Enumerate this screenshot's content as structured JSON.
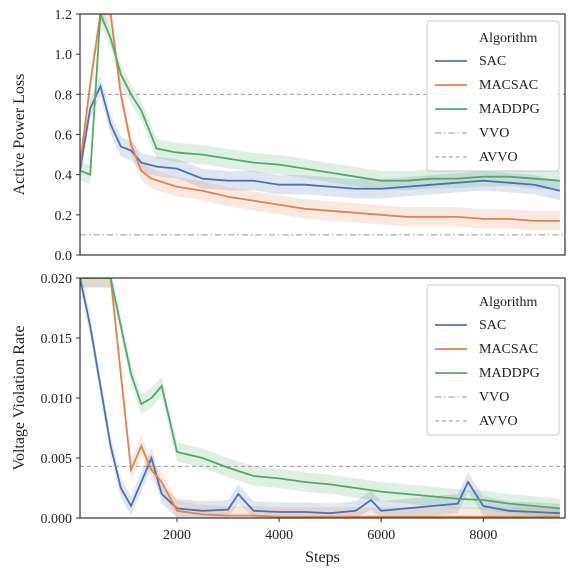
{
  "chart_data": [
    {
      "type": "line",
      "ylabel": "Active Power Loss",
      "xlabel": "",
      "xlim": [
        100,
        9600
      ],
      "ylim": [
        0,
        1.2
      ],
      "yticks": [
        "0.0",
        "0.2",
        "0.4",
        "0.6",
        "0.8",
        "1.0",
        "1.2"
      ],
      "ytick_values": [
        0,
        0.2,
        0.4,
        0.6,
        0.8,
        1.0,
        1.2
      ],
      "xticks": [],
      "xtick_values": [],
      "grid": false,
      "legend": {
        "title": "Algorithm",
        "placement": "top-right"
      },
      "series": [
        {
          "name": "SAC",
          "color": "#4c72b0",
          "style": "solid",
          "x": [
            100,
            300,
            500,
            700,
            900,
            1100,
            1300,
            1600,
            2000,
            2500,
            3000,
            3500,
            4000,
            4500,
            5000,
            5500,
            6000,
            6500,
            7000,
            7500,
            8000,
            8500,
            9000,
            9500
          ],
          "y": [
            0.42,
            0.73,
            0.84,
            0.65,
            0.54,
            0.52,
            0.46,
            0.44,
            0.43,
            0.38,
            0.37,
            0.37,
            0.35,
            0.35,
            0.34,
            0.33,
            0.33,
            0.34,
            0.35,
            0.36,
            0.37,
            0.36,
            0.35,
            0.32
          ]
        },
        {
          "name": "MACSAC",
          "color": "#dd8452",
          "style": "solid",
          "x": [
            100,
            300,
            500,
            700,
            900,
            1100,
            1300,
            1500,
            2000,
            2500,
            3000,
            3500,
            4000,
            4500,
            5000,
            5500,
            6000,
            6500,
            7000,
            7500,
            8000,
            8500,
            9000,
            9500
          ],
          "y": [
            0.45,
            0.85,
            1.2,
            1.2,
            0.8,
            0.55,
            0.42,
            0.38,
            0.34,
            0.32,
            0.29,
            0.27,
            0.25,
            0.23,
            0.22,
            0.21,
            0.2,
            0.19,
            0.19,
            0.19,
            0.18,
            0.18,
            0.17,
            0.17
          ]
        },
        {
          "name": "MADDPG",
          "color": "#55a868",
          "style": "solid",
          "x": [
            100,
            300,
            500,
            700,
            900,
            1100,
            1300,
            1600,
            2000,
            2500,
            3000,
            3500,
            4000,
            4500,
            5000,
            5500,
            6000,
            6500,
            7000,
            7500,
            8000,
            8500,
            9000,
            9500
          ],
          "y": [
            0.42,
            0.4,
            1.2,
            1.08,
            0.9,
            0.8,
            0.72,
            0.53,
            0.51,
            0.5,
            0.48,
            0.46,
            0.45,
            0.43,
            0.41,
            0.39,
            0.37,
            0.37,
            0.38,
            0.38,
            0.39,
            0.39,
            0.38,
            0.37
          ]
        },
        {
          "name": "VVO",
          "color": "#999999",
          "style": "dashdot",
          "x": [
            100,
            9600
          ],
          "y": [
            0.1,
            0.1
          ]
        },
        {
          "name": "AVVO",
          "color": "#999999",
          "style": "dashed",
          "x": [
            100,
            9600
          ],
          "y": [
            0.8,
            0.8
          ]
        }
      ]
    },
    {
      "type": "line",
      "ylabel": "Voltage Violation Rate",
      "xlabel": "Steps",
      "xlim": [
        100,
        9600
      ],
      "ylim": [
        0,
        0.02
      ],
      "yticks": [
        "0.000",
        "0.005",
        "0.010",
        "0.015",
        "0.020"
      ],
      "ytick_values": [
        0,
        0.005,
        0.01,
        0.015,
        0.02
      ],
      "xticks": [
        "2000",
        "4000",
        "6000",
        "8000"
      ],
      "xtick_values": [
        2000,
        4000,
        6000,
        8000
      ],
      "grid": false,
      "legend": {
        "title": "Algorithm",
        "placement": "top-right"
      },
      "series": [
        {
          "name": "SAC",
          "color": "#4c72b0",
          "style": "solid",
          "x": [
            100,
            300,
            500,
            700,
            900,
            1100,
            1300,
            1500,
            1700,
            2000,
            2500,
            3000,
            3200,
            3500,
            4000,
            4500,
            5000,
            5500,
            5800,
            6000,
            6500,
            7000,
            7500,
            7700,
            8000,
            8500,
            9000,
            9500
          ],
          "y": [
            0.02,
            0.016,
            0.011,
            0.006,
            0.0025,
            0.001,
            0.003,
            0.005,
            0.002,
            0.0008,
            0.0006,
            0.0007,
            0.002,
            0.0006,
            0.0005,
            0.0005,
            0.0004,
            0.0006,
            0.0015,
            0.0006,
            0.0008,
            0.001,
            0.0012,
            0.003,
            0.001,
            0.0006,
            0.0005,
            0.0004
          ]
        },
        {
          "name": "MACSAC",
          "color": "#dd8452",
          "style": "solid",
          "x": [
            100,
            300,
            500,
            700,
            900,
            1100,
            1300,
            1500,
            1700,
            2000,
            2500,
            3000,
            3500,
            4000,
            4500,
            5000,
            5500,
            6000,
            6500,
            7000,
            7500,
            8000,
            8500,
            9000,
            9500
          ],
          "y": [
            0.02,
            0.02,
            0.02,
            0.02,
            0.012,
            0.004,
            0.006,
            0.004,
            0.003,
            0.0006,
            0.0003,
            0.0002,
            0.0002,
            0.0001,
            0.0001,
            0.0001,
            0.0001,
            0.0001,
            0.0001,
            0.0001,
            0.0001,
            0.0001,
            0.0001,
            0.0001,
            0.0001
          ]
        },
        {
          "name": "MADDPG",
          "color": "#55a868",
          "style": "solid",
          "x": [
            100,
            300,
            500,
            700,
            900,
            1100,
            1300,
            1500,
            1700,
            2000,
            2500,
            3000,
            3500,
            4000,
            4500,
            5000,
            5500,
            6000,
            6500,
            7000,
            7500,
            8000,
            8500,
            9000,
            9500
          ],
          "y": [
            0.02,
            0.02,
            0.02,
            0.02,
            0.016,
            0.012,
            0.0095,
            0.01,
            0.011,
            0.0055,
            0.005,
            0.0042,
            0.0035,
            0.0033,
            0.003,
            0.0028,
            0.0025,
            0.0022,
            0.002,
            0.0018,
            0.0016,
            0.0015,
            0.0012,
            0.001,
            0.0008
          ]
        },
        {
          "name": "VVO",
          "color": "#999999",
          "style": "dashdot",
          "x": [
            100,
            9600
          ],
          "y": [
            0.0,
            0.0
          ]
        },
        {
          "name": "AVVO",
          "color": "#999999",
          "style": "dashed",
          "x": [
            100,
            9600
          ],
          "y": [
            0.0043,
            0.0043
          ]
        }
      ]
    }
  ]
}
